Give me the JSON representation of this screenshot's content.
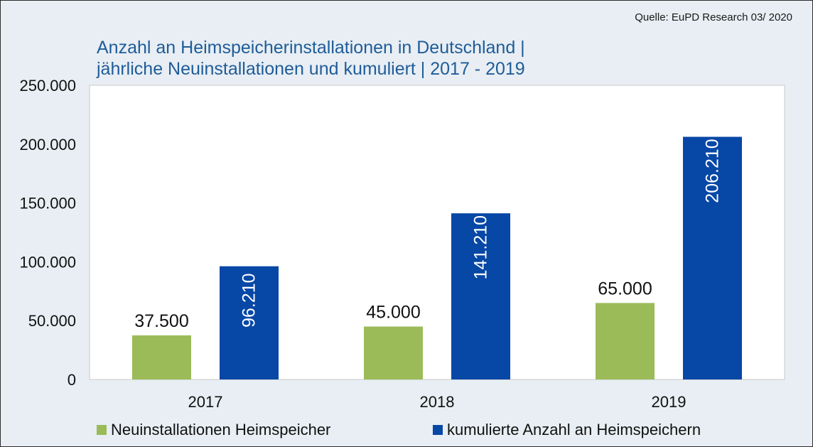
{
  "source": "Quelle: EuPD Research 03/ 2020",
  "title_lines": [
    "Anzahl an Heimspeicherinstallationen in Deutschland |",
    "jährliche Neuinstallationen und kumuliert | 2017 - 2019"
  ],
  "colors": {
    "background": "#e8eef3",
    "plot_area": "#ffffff",
    "title": "#1f5c99",
    "neu": "#9bbb59",
    "kum": "#0747a6"
  },
  "legend": {
    "items": [
      {
        "label": "Neuinstallationen Heimspeicher",
        "color": "#9bbb59"
      },
      {
        "label": "kumulierte Anzahl an Heimspeichern",
        "color": "#0747a6"
      }
    ],
    "placement": "bottom"
  },
  "chart_data": {
    "type": "bar",
    "categories": [
      "2017",
      "2018",
      "2019"
    ],
    "series": [
      {
        "name": "Neuinstallationen Heimspeicher",
        "values": [
          37500,
          45000,
          65000
        ],
        "labels": [
          "37.500",
          "45.000",
          "65.000"
        ],
        "label_orientation": "horizontal"
      },
      {
        "name": "kumulierte Anzahl an Heimspeichern",
        "values": [
          96210,
          141210,
          206210
        ],
        "labels": [
          "96.210",
          "141.210",
          "206.210"
        ],
        "label_orientation": "vertical"
      }
    ],
    "ylim": [
      0,
      250000
    ],
    "yticks": [
      0,
      50000,
      100000,
      150000,
      200000,
      250000
    ],
    "ytick_labels": [
      "0",
      "50.000",
      "100.000",
      "150.000",
      "200.000",
      "250.000"
    ],
    "grid": false
  }
}
